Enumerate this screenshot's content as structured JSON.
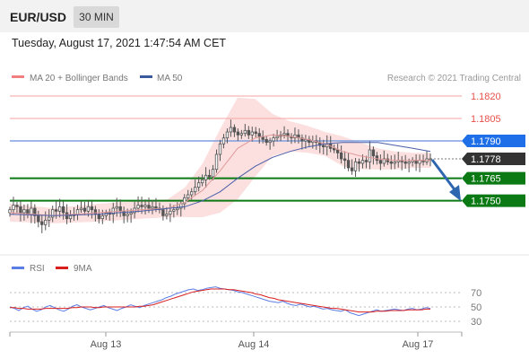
{
  "header": {
    "symbol": "EUR/USD",
    "timeframe": "30 MIN"
  },
  "datetime": "Tuesday, August 17, 2021 1:47:54 AM CET",
  "watermark": "Research © 2021 Trading Central",
  "colors": {
    "resistance": "#e8504a",
    "resistance_line": "#f5a3a0",
    "pivot": "#1e6fe8",
    "pivot_line": "#7f9fe0",
    "support": "#0b7a14",
    "last": "#333333",
    "ma20": "#e09a9a",
    "ma50": "#4a5ea8",
    "bollinger_fill": "#fbd5d5",
    "rsi": "#5b7ee5",
    "rsi_ma": "#d91e1e",
    "candle": "#555555",
    "arrow": "#2f66b0"
  },
  "chart_data": [
    {
      "type": "candlestick",
      "title": "EUR/USD",
      "legend": [
        {
          "name": "MA 20 + Bollinger Bands",
          "color": "#f08080"
        },
        {
          "name": "MA 50",
          "color": "#3a5a9e"
        }
      ],
      "x_ticks": [
        "Aug 13",
        "Aug 14",
        "Aug 17"
      ],
      "levels": [
        {
          "value": 1.182,
          "label": "1.1820",
          "role": "resistance"
        },
        {
          "value": 1.1805,
          "label": "1.1805",
          "role": "resistance"
        },
        {
          "value": 1.179,
          "label": "1.1790",
          "role": "pivot"
        },
        {
          "value": 1.1778,
          "label": "1.1778",
          "role": "last"
        },
        {
          "value": 1.1765,
          "label": "1.1765",
          "role": "support"
        },
        {
          "value": 1.175,
          "label": "1.1750",
          "role": "support"
        }
      ],
      "forecast": "down",
      "close": [
        1.1744,
        1.1747,
        1.1746,
        1.1742,
        1.1744,
        1.1741,
        1.1745,
        1.174,
        1.1736,
        1.1734,
        1.1737,
        1.1739,
        1.1744,
        1.1743,
        1.1746,
        1.1742,
        1.1738,
        1.174,
        1.1741,
        1.1744,
        1.1745,
        1.1743,
        1.1746,
        1.1744,
        1.1741,
        1.1738,
        1.174,
        1.1742,
        1.1741,
        1.1745,
        1.1746,
        1.1743,
        1.174,
        1.1741,
        1.1742,
        1.1745,
        1.1747,
        1.1746,
        1.1747,
        1.1745,
        1.1746,
        1.1745,
        1.1744,
        1.174,
        1.1741,
        1.1743,
        1.1744,
        1.1745,
        1.1748,
        1.1752,
        1.1754,
        1.1756,
        1.1759,
        1.1762,
        1.1764,
        1.1767,
        1.1766,
        1.1771,
        1.1781,
        1.1788,
        1.1792,
        1.1796,
        1.1799,
        1.1796,
        1.1794,
        1.1795,
        1.1797,
        1.1794,
        1.1796,
        1.1795,
        1.1793,
        1.1791,
        1.1789,
        1.179,
        1.1792,
        1.1793,
        1.1794,
        1.1795,
        1.1793,
        1.1792,
        1.1794,
        1.1792,
        1.179,
        1.1791,
        1.1789,
        1.179,
        1.1789,
        1.1787,
        1.1786,
        1.1788,
        1.1785,
        1.1784,
        1.1782,
        1.1778,
        1.1777,
        1.1772,
        1.177,
        1.1776,
        1.1775,
        1.1777,
        1.1776,
        1.1784,
        1.178,
        1.1777,
        1.1775,
        1.1778,
        1.1776,
        1.1775,
        1.1776,
        1.1777,
        1.1776,
        1.1775,
        1.1776,
        1.1777,
        1.1775,
        1.1777,
        1.1776,
        1.1778,
        1.1778
      ],
      "ma50_points": [
        [
          0,
          1.1741
        ],
        [
          50,
          1.174
        ],
        [
          100,
          1.1741
        ],
        [
          150,
          1.1743
        ],
        [
          200,
          1.1746
        ],
        [
          220,
          1.175
        ],
        [
          240,
          1.1756
        ],
        [
          260,
          1.1765
        ],
        [
          280,
          1.1773
        ],
        [
          300,
          1.1779
        ],
        [
          320,
          1.1783
        ],
        [
          340,
          1.1786
        ],
        [
          360,
          1.1788
        ],
        [
          380,
          1.1789
        ],
        [
          400,
          1.1789
        ],
        [
          420,
          1.1789
        ],
        [
          440,
          1.1787
        ],
        [
          460,
          1.1785
        ],
        [
          480,
          1.1783
        ]
      ],
      "ma20_points": [
        [
          0,
          1.1742
        ],
        [
          50,
          1.174
        ],
        [
          100,
          1.1742
        ],
        [
          150,
          1.1744
        ],
        [
          180,
          1.1745
        ],
        [
          200,
          1.1749
        ],
        [
          220,
          1.1757
        ],
        [
          240,
          1.177
        ],
        [
          260,
          1.1785
        ],
        [
          280,
          1.1792
        ],
        [
          300,
          1.1794
        ],
        [
          320,
          1.1793
        ],
        [
          340,
          1.1791
        ],
        [
          360,
          1.1788
        ],
        [
          380,
          1.1783
        ],
        [
          400,
          1.178
        ],
        [
          420,
          1.1778
        ],
        [
          440,
          1.1777
        ],
        [
          460,
          1.1777
        ],
        [
          480,
          1.1777
        ]
      ]
    },
    {
      "type": "line",
      "legend": [
        {
          "name": "RSI",
          "color": "#5b7ee5"
        },
        {
          "name": "9MA",
          "color": "#d91e1e"
        }
      ],
      "y_ticks": [
        70,
        50,
        30
      ],
      "ylim": [
        20,
        80
      ],
      "rsi": [
        50,
        48,
        45,
        49,
        51,
        47,
        44,
        46,
        50,
        52,
        49,
        46,
        44,
        47,
        51,
        53,
        50,
        48,
        46,
        48,
        50,
        52,
        49,
        47,
        45,
        48,
        50,
        53,
        51,
        49,
        52,
        54,
        56,
        58,
        60,
        63,
        65,
        68,
        70,
        72,
        74,
        75,
        73,
        74,
        76,
        77,
        78,
        76,
        75,
        74,
        73,
        71,
        70,
        68,
        66,
        64,
        62,
        60,
        58,
        57,
        56,
        58,
        55,
        53,
        52,
        54,
        52,
        50,
        51,
        49,
        47,
        48,
        46,
        45,
        44,
        46,
        42,
        40,
        38,
        40,
        42,
        44,
        46,
        44,
        45,
        46,
        47,
        46,
        45,
        47,
        48,
        46,
        47,
        49,
        48
      ],
      "ma": [
        49,
        49,
        48,
        48,
        47,
        47,
        47,
        47,
        48,
        48,
        48,
        48,
        48,
        48,
        49,
        49,
        50,
        50,
        50,
        49,
        49,
        50,
        50,
        50,
        50,
        50,
        50,
        50,
        50,
        51,
        51,
        52,
        53,
        55,
        57,
        59,
        61,
        63,
        65,
        67,
        69,
        71,
        72,
        73,
        74,
        75,
        75,
        75,
        75,
        74,
        74,
        73,
        72,
        71,
        70,
        68,
        67,
        65,
        63,
        62,
        60,
        59,
        58,
        57,
        56,
        55,
        54,
        53,
        52,
        51,
        50,
        49,
        48,
        48,
        47,
        46,
        45,
        44,
        43,
        43,
        43,
        43,
        44,
        44,
        44,
        45,
        45,
        45,
        45,
        46,
        46,
        46,
        46,
        47,
        47
      ]
    }
  ]
}
